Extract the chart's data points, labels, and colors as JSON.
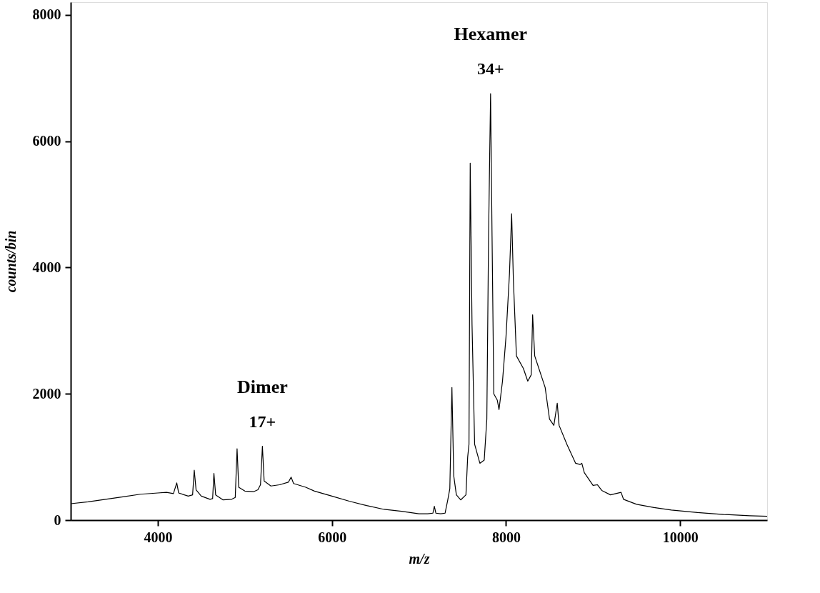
{
  "chart_data": {
    "type": "line",
    "xlabel": "m/z",
    "ylabel": "counts/bin",
    "xlim": [
      3000,
      11000
    ],
    "xticks": [
      4000,
      6000,
      8000,
      10000
    ],
    "ylim": [
      0,
      8200
    ],
    "yticks": [
      0,
      2000,
      4000,
      6000,
      8000
    ],
    "grid": false,
    "annotations": [
      "Dimer",
      {
        "text": "17+",
        "x": 5202,
        "y": 1170
      },
      "Hexamer",
      {
        "text": "34+",
        "x": 7823,
        "y": 6750
      }
    ],
    "series": [
      {
        "color": "#000000",
        "x": [
          3000,
          3200,
          3400,
          3600,
          3800,
          4000,
          4100,
          4180,
          4218,
          4240,
          4350,
          4400,
          4419,
          4440,
          4500,
          4600,
          4630,
          4645,
          4665,
          4750,
          4850,
          4890,
          4911,
          4930,
          5000,
          5100,
          5150,
          5180,
          5202,
          5222,
          5300,
          5400,
          5500,
          5532,
          5560,
          5700,
          5800,
          5900,
          6000,
          6200,
          6400,
          6600,
          6800,
          7000,
          7100,
          7160,
          7177,
          7195,
          7250,
          7300,
          7330,
          7355,
          7379,
          7400,
          7430,
          7480,
          7540,
          7560,
          7575,
          7589,
          7610,
          7640,
          7700,
          7750,
          7780,
          7800,
          7823,
          7840,
          7860,
          7900,
          7920,
          7960,
          8000,
          8040,
          8065,
          8085,
          8120,
          8200,
          8250,
          8290,
          8306,
          8330,
          8450,
          8500,
          8550,
          8589,
          8610,
          8700,
          8800,
          8850,
          8871,
          8900,
          9000,
          9050,
          9100,
          9200,
          9322,
          9350,
          9500,
          9700,
          9900,
          10200,
          10500,
          10800,
          11000
        ],
        "values": [
          260,
          290,
          330,
          370,
          410,
          430,
          440,
          420,
          590,
          430,
          380,
          400,
          790,
          480,
          380,
          330,
          340,
          740,
          400,
          320,
          330,
          360,
          1130,
          520,
          460,
          450,
          480,
          560,
          1170,
          620,
          540,
          560,
          600,
          680,
          580,
          520,
          460,
          420,
          380,
          300,
          230,
          170,
          140,
          100,
          100,
          110,
          220,
          110,
          100,
          110,
          310,
          500,
          2100,
          700,
          400,
          320,
          400,
          1000,
          1200,
          5650,
          3100,
          1200,
          900,
          950,
          1600,
          4500,
          6750,
          4500,
          2000,
          1900,
          1750,
          2200,
          2900,
          3900,
          4850,
          3800,
          2600,
          2400,
          2200,
          2300,
          3250,
          2600,
          2100,
          1600,
          1500,
          1850,
          1500,
          1200,
          900,
          880,
          900,
          750,
          550,
          560,
          470,
          400,
          440,
          330,
          250,
          200,
          160,
          120,
          90,
          70,
          60
        ]
      }
    ]
  }
}
